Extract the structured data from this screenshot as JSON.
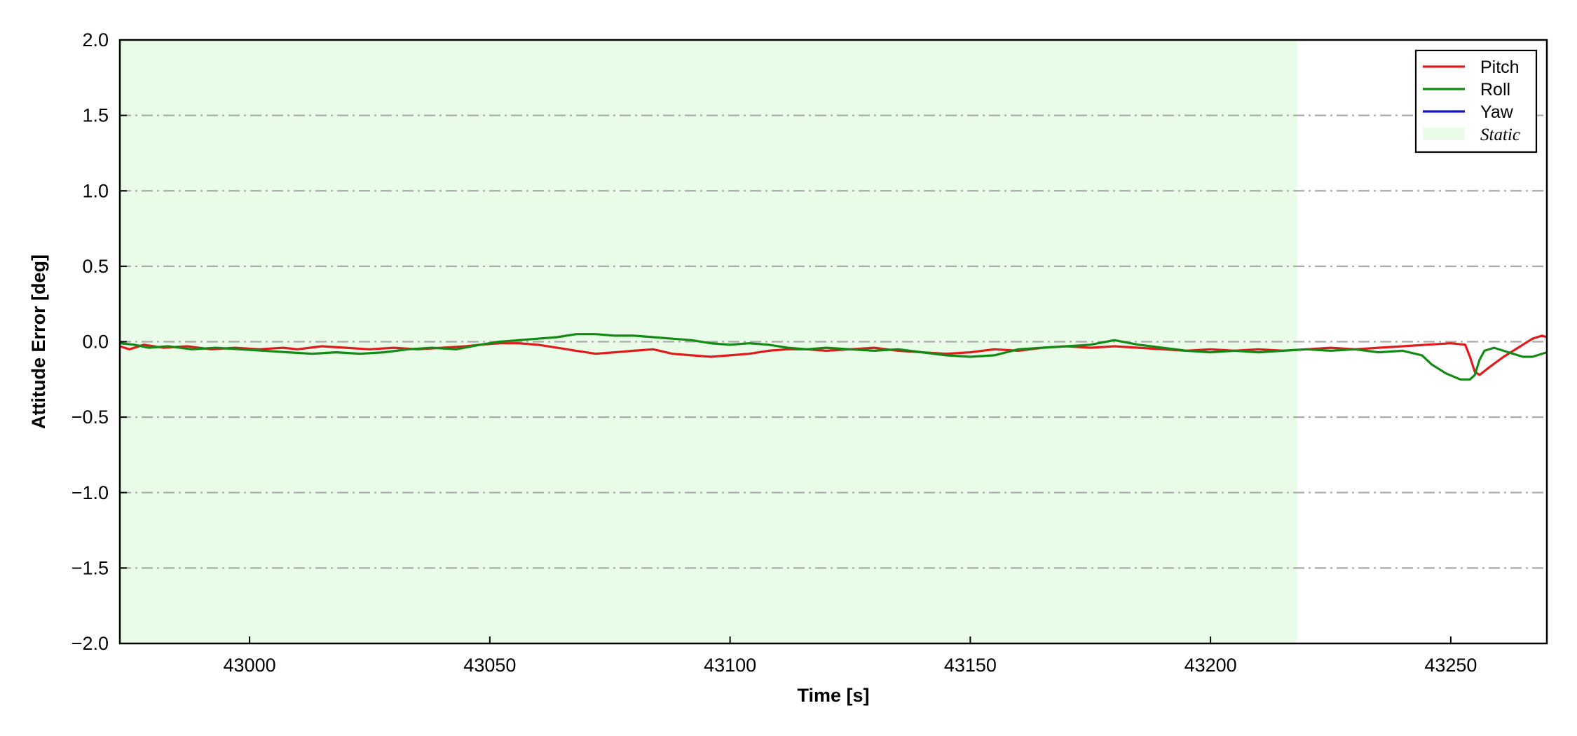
{
  "chart_data": {
    "type": "line",
    "xlabel": "Time [s]",
    "ylabel": "Attitude Error [deg]",
    "xlim": [
      42973,
      43270
    ],
    "ylim": [
      -2.0,
      2.0
    ],
    "x_ticks": [
      43000,
      43050,
      43100,
      43150,
      43200,
      43250
    ],
    "x_tick_labels": [
      "43000",
      "43050",
      "43100",
      "43150",
      "43200",
      "43250"
    ],
    "y_ticks": [
      -2.0,
      -1.5,
      -1.0,
      -0.5,
      0.0,
      0.5,
      1.0,
      1.5,
      2.0
    ],
    "y_tick_labels": [
      "−2.0",
      "−1.5",
      "−1.0",
      "−0.5",
      "0.0",
      "0.5",
      "1.0",
      "1.5",
      "2.0"
    ],
    "grid": "horizontal dash-dot",
    "legend_position": "top-right",
    "static_region": {
      "label": "Static",
      "x_start": 42973,
      "x_end": 43218,
      "color": "#e8fce8"
    },
    "series": [
      {
        "name": "Pitch",
        "color": "#e31a1c",
        "points": [
          [
            42973,
            -0.03
          ],
          [
            42975,
            -0.05
          ],
          [
            42978,
            -0.02
          ],
          [
            42982,
            -0.04
          ],
          [
            42987,
            -0.03
          ],
          [
            42992,
            -0.05
          ],
          [
            42997,
            -0.04
          ],
          [
            43002,
            -0.05
          ],
          [
            43007,
            -0.04
          ],
          [
            43010,
            -0.05
          ],
          [
            43015,
            -0.03
          ],
          [
            43020,
            -0.04
          ],
          [
            43025,
            -0.05
          ],
          [
            43030,
            -0.04
          ],
          [
            43035,
            -0.05
          ],
          [
            43040,
            -0.04
          ],
          [
            43045,
            -0.03
          ],
          [
            43048,
            -0.02
          ],
          [
            43052,
            -0.01
          ],
          [
            43056,
            -0.01
          ],
          [
            43060,
            -0.02
          ],
          [
            43064,
            -0.04
          ],
          [
            43068,
            -0.06
          ],
          [
            43072,
            -0.08
          ],
          [
            43076,
            -0.07
          ],
          [
            43080,
            -0.06
          ],
          [
            43084,
            -0.05
          ],
          [
            43088,
            -0.08
          ],
          [
            43092,
            -0.09
          ],
          [
            43096,
            -0.1
          ],
          [
            43100,
            -0.09
          ],
          [
            43104,
            -0.08
          ],
          [
            43108,
            -0.06
          ],
          [
            43112,
            -0.05
          ],
          [
            43116,
            -0.05
          ],
          [
            43120,
            -0.06
          ],
          [
            43125,
            -0.05
          ],
          [
            43130,
            -0.04
          ],
          [
            43135,
            -0.06
          ],
          [
            43140,
            -0.07
          ],
          [
            43145,
            -0.08
          ],
          [
            43150,
            -0.07
          ],
          [
            43155,
            -0.05
          ],
          [
            43160,
            -0.06
          ],
          [
            43165,
            -0.04
          ],
          [
            43170,
            -0.03
          ],
          [
            43175,
            -0.04
          ],
          [
            43180,
            -0.03
          ],
          [
            43185,
            -0.04
          ],
          [
            43190,
            -0.05
          ],
          [
            43195,
            -0.06
          ],
          [
            43200,
            -0.05
          ],
          [
            43205,
            -0.06
          ],
          [
            43210,
            -0.05
          ],
          [
            43215,
            -0.06
          ],
          [
            43220,
            -0.05
          ],
          [
            43225,
            -0.04
          ],
          [
            43230,
            -0.05
          ],
          [
            43235,
            -0.04
          ],
          [
            43240,
            -0.03
          ],
          [
            43245,
            -0.02
          ],
          [
            43250,
            -0.01
          ],
          [
            43253,
            -0.02
          ],
          [
            43254,
            -0.1
          ],
          [
            43255,
            -0.2
          ],
          [
            43256,
            -0.22
          ],
          [
            43258,
            -0.17
          ],
          [
            43261,
            -0.1
          ],
          [
            43264,
            -0.04
          ],
          [
            43267,
            0.02
          ],
          [
            43269,
            0.04
          ],
          [
            43270,
            0.03
          ]
        ]
      },
      {
        "name": "Roll",
        "color": "#138a13",
        "points": [
          [
            42973,
            -0.01
          ],
          [
            42976,
            -0.02
          ],
          [
            42979,
            -0.04
          ],
          [
            42983,
            -0.03
          ],
          [
            42988,
            -0.05
          ],
          [
            42993,
            -0.04
          ],
          [
            42998,
            -0.05
          ],
          [
            43003,
            -0.06
          ],
          [
            43008,
            -0.07
          ],
          [
            43013,
            -0.08
          ],
          [
            43018,
            -0.07
          ],
          [
            43023,
            -0.08
          ],
          [
            43028,
            -0.07
          ],
          [
            43033,
            -0.05
          ],
          [
            43038,
            -0.04
          ],
          [
            43043,
            -0.05
          ],
          [
            43048,
            -0.02
          ],
          [
            43052,
            0.0
          ],
          [
            43056,
            0.01
          ],
          [
            43060,
            0.02
          ],
          [
            43064,
            0.03
          ],
          [
            43068,
            0.05
          ],
          [
            43072,
            0.05
          ],
          [
            43076,
            0.04
          ],
          [
            43080,
            0.04
          ],
          [
            43084,
            0.03
          ],
          [
            43088,
            0.02
          ],
          [
            43092,
            0.01
          ],
          [
            43096,
            -0.01
          ],
          [
            43100,
            -0.02
          ],
          [
            43104,
            -0.01
          ],
          [
            43108,
            -0.02
          ],
          [
            43112,
            -0.04
          ],
          [
            43116,
            -0.05
          ],
          [
            43120,
            -0.04
          ],
          [
            43125,
            -0.05
          ],
          [
            43130,
            -0.06
          ],
          [
            43135,
            -0.05
          ],
          [
            43140,
            -0.07
          ],
          [
            43145,
            -0.09
          ],
          [
            43150,
            -0.1
          ],
          [
            43155,
            -0.09
          ],
          [
            43160,
            -0.05
          ],
          [
            43165,
            -0.04
          ],
          [
            43170,
            -0.03
          ],
          [
            43175,
            -0.02
          ],
          [
            43180,
            0.01
          ],
          [
            43185,
            -0.02
          ],
          [
            43190,
            -0.04
          ],
          [
            43195,
            -0.06
          ],
          [
            43200,
            -0.07
          ],
          [
            43205,
            -0.06
          ],
          [
            43210,
            -0.07
          ],
          [
            43215,
            -0.06
          ],
          [
            43220,
            -0.05
          ],
          [
            43225,
            -0.06
          ],
          [
            43230,
            -0.05
          ],
          [
            43235,
            -0.07
          ],
          [
            43240,
            -0.06
          ],
          [
            43244,
            -0.09
          ],
          [
            43246,
            -0.15
          ],
          [
            43249,
            -0.21
          ],
          [
            43252,
            -0.25
          ],
          [
            43254,
            -0.25
          ],
          [
            43255,
            -0.22
          ],
          [
            43256,
            -0.12
          ],
          [
            43257,
            -0.06
          ],
          [
            43259,
            -0.04
          ],
          [
            43262,
            -0.07
          ],
          [
            43265,
            -0.1
          ],
          [
            43267,
            -0.1
          ],
          [
            43270,
            -0.07
          ]
        ]
      },
      {
        "name": "Yaw",
        "color": "#1515c0",
        "points": []
      }
    ]
  }
}
